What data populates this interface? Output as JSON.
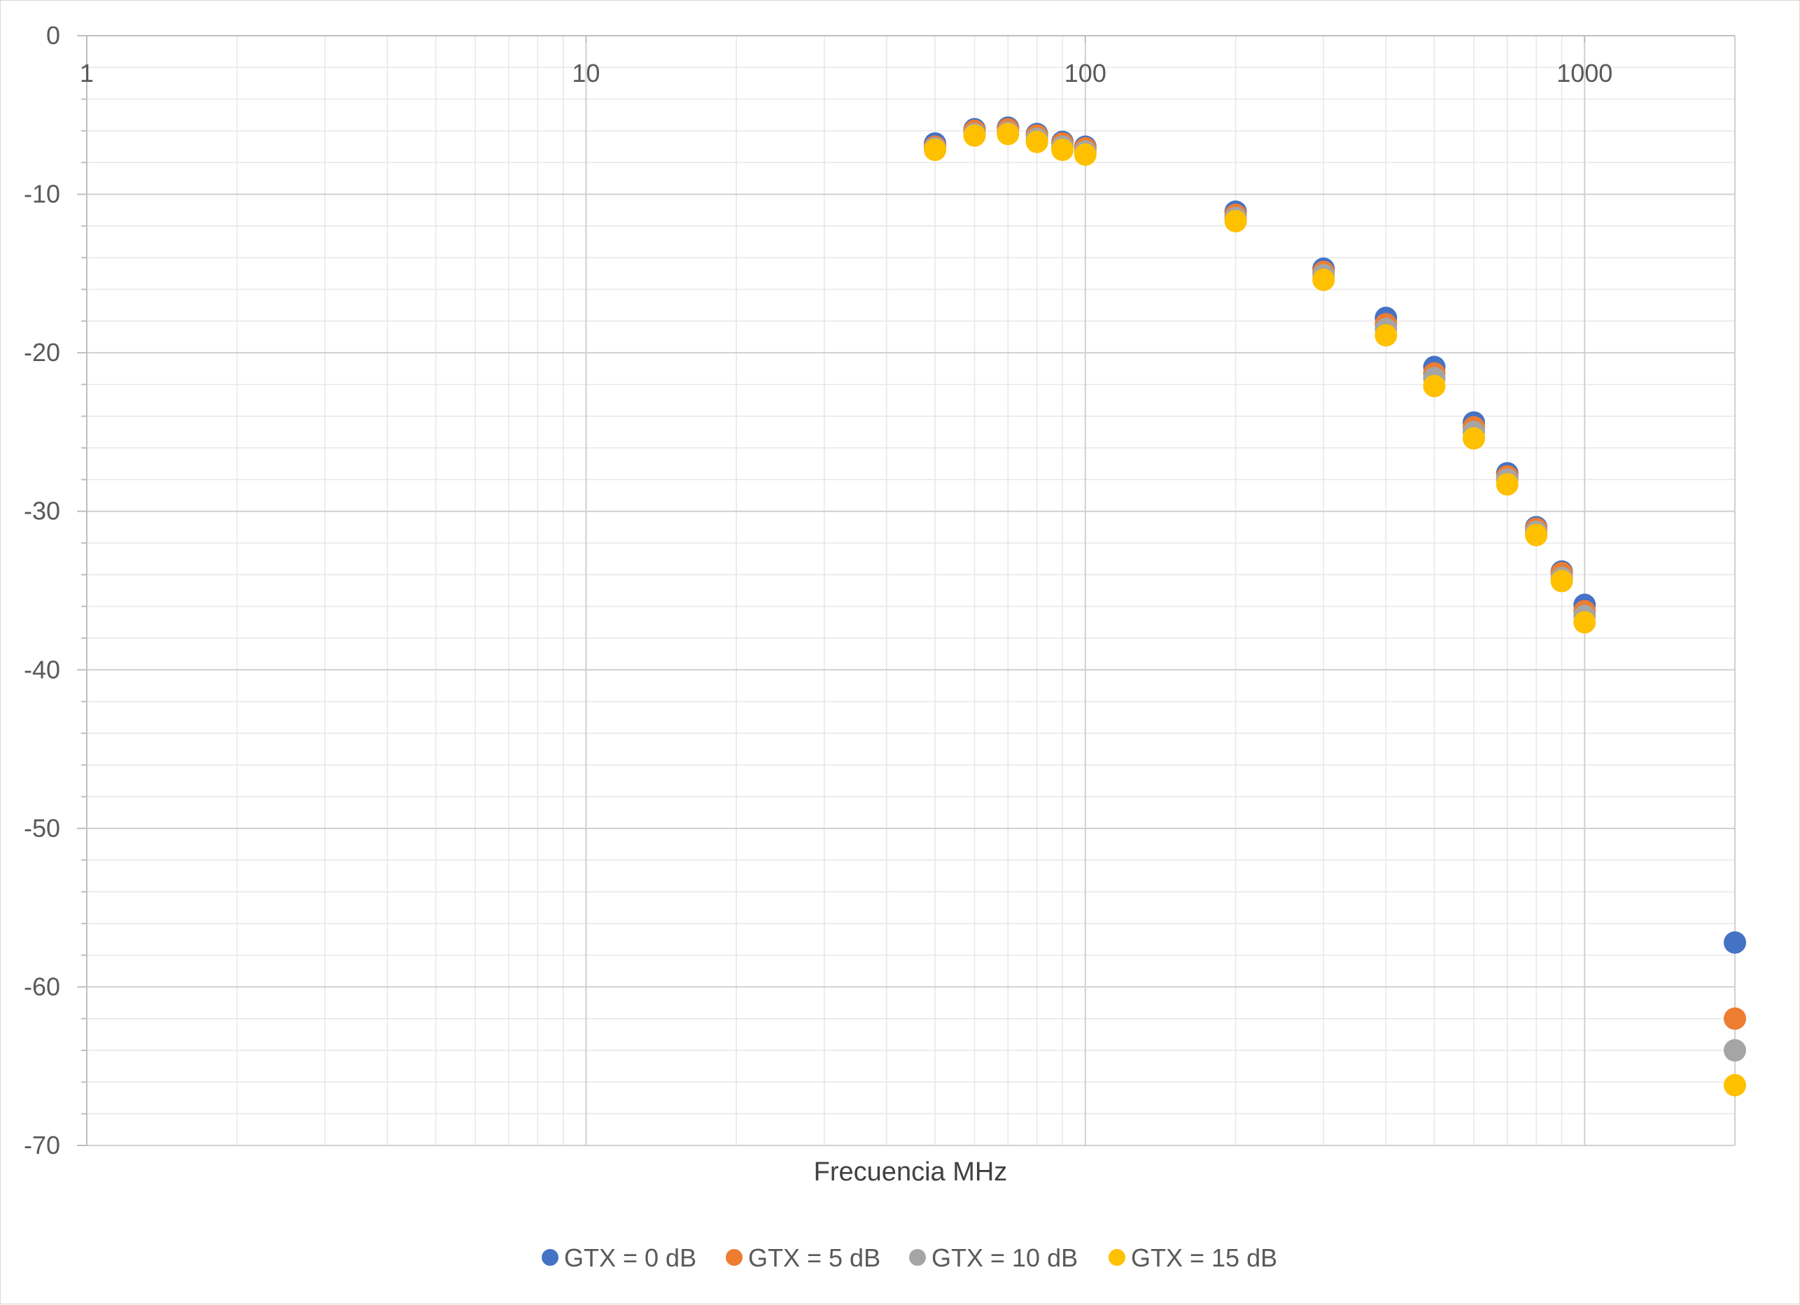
{
  "chart_data": {
    "type": "scatter",
    "xlabel": "Frecuencia MHz",
    "x_scale": "log",
    "xlim": [
      1,
      2000
    ],
    "ylim": [
      -70,
      0
    ],
    "x_tick_labels": [
      "1",
      "10",
      "100",
      "1000"
    ],
    "y_tick_labels": [
      "0",
      "-10",
      "-20",
      "-30",
      "-40",
      "-50",
      "-60",
      "-70"
    ],
    "grid": true,
    "legend_position": "bottom",
    "series": [
      {
        "name": "GTX = 0 dB",
        "color": "#4472C4",
        "x": [
          50,
          60,
          70,
          80,
          90,
          100,
          200,
          300,
          400,
          500,
          600,
          700,
          800,
          900,
          1000,
          2000
        ],
        "y": [
          -6.8,
          -5.9,
          -5.8,
          -6.2,
          -6.7,
          -7.0,
          -11.1,
          -14.7,
          -17.8,
          -20.9,
          -24.4,
          -27.6,
          -31.0,
          -33.8,
          -35.9,
          -57.2
        ]
      },
      {
        "name": "GTX = 5 dB",
        "color": "#ED7D31",
        "x": [
          50,
          60,
          70,
          80,
          90,
          100,
          200,
          300,
          400,
          500,
          600,
          700,
          800,
          900,
          1000,
          2000
        ],
        "y": [
          -7.0,
          -6.0,
          -5.9,
          -6.3,
          -6.8,
          -7.1,
          -11.3,
          -14.9,
          -18.2,
          -21.3,
          -24.7,
          -27.8,
          -31.1,
          -33.9,
          -36.3,
          -62.0
        ]
      },
      {
        "name": "GTX = 10 dB",
        "color": "#A5A5A5",
        "x": [
          50,
          60,
          70,
          80,
          90,
          100,
          200,
          300,
          400,
          500,
          600,
          700,
          800,
          900,
          1000,
          2000
        ],
        "y": [
          -7.1,
          -6.2,
          -6.1,
          -6.5,
          -7.0,
          -7.3,
          -11.5,
          -15.1,
          -18.5,
          -21.6,
          -25.0,
          -28.0,
          -31.3,
          -34.2,
          -36.6,
          -64.0
        ]
      },
      {
        "name": "GTX = 15 dB",
        "color": "#FFC000",
        "x": [
          50,
          60,
          70,
          80,
          90,
          100,
          200,
          300,
          400,
          500,
          600,
          700,
          800,
          900,
          1000,
          2000
        ],
        "y": [
          -7.2,
          -6.3,
          -6.2,
          -6.7,
          -7.2,
          -7.5,
          -11.7,
          -15.4,
          -18.9,
          -22.1,
          -25.4,
          -28.3,
          -31.5,
          -34.4,
          -37.0,
          -66.2
        ]
      }
    ]
  }
}
